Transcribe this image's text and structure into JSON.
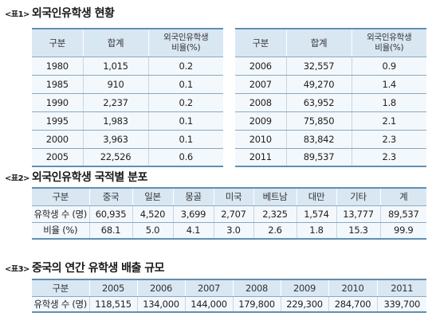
{
  "table1": {
    "tag": "<표1>",
    "title": "외국인유학생 현황",
    "headers": [
      "구분",
      "합계",
      "외국인유학생 비율(%)"
    ],
    "header_ratio_line1": "외국인유학생",
    "header_ratio_line2": "비율(%)",
    "left_rows": [
      [
        "1980",
        "1,015",
        "0.2"
      ],
      [
        "1985",
        "910",
        "0.1"
      ],
      [
        "1990",
        "2,237",
        "0.2"
      ],
      [
        "1995",
        "1,983",
        "0.1"
      ],
      [
        "2000",
        "3,963",
        "0.1"
      ],
      [
        "2005",
        "22,526",
        "0.6"
      ]
    ],
    "right_rows": [
      [
        "2006",
        "32,557",
        "0.9"
      ],
      [
        "2007",
        "49,270",
        "1.4"
      ],
      [
        "2008",
        "63,952",
        "1.8"
      ],
      [
        "2009",
        "75,850",
        "2.1"
      ],
      [
        "2010",
        "83,842",
        "2.3"
      ],
      [
        "2011",
        "89,537",
        "2.3"
      ]
    ]
  },
  "table2": {
    "tag": "<표2>",
    "title": "외국인유학생 국적별 분포",
    "headers": [
      "구분",
      "중국",
      "일본",
      "몽골",
      "미국",
      "베트남",
      "대만",
      "기타",
      "계"
    ],
    "rows": [
      [
        "유학생 수 (명)",
        "60,935",
        "4,520",
        "3,699",
        "2,707",
        "2,325",
        "1,574",
        "13,777",
        "89,537"
      ],
      [
        "비율 (%)",
        "68.1",
        "5.0",
        "4.1",
        "3.0",
        "2.6",
        "1.8",
        "15.3",
        "99.9"
      ]
    ]
  },
  "table3": {
    "tag": "<표3>",
    "title": "중국의 연간 유학생 배출 규모",
    "headers": [
      "구분",
      "2005",
      "2006",
      "2007",
      "2008",
      "2009",
      "2010",
      "2011"
    ],
    "rows": [
      [
        "유학생 수 (명)",
        "118,515",
        "134,000",
        "144,000",
        "179,800",
        "229,300",
        "284,700",
        "339,700"
      ]
    ]
  }
}
